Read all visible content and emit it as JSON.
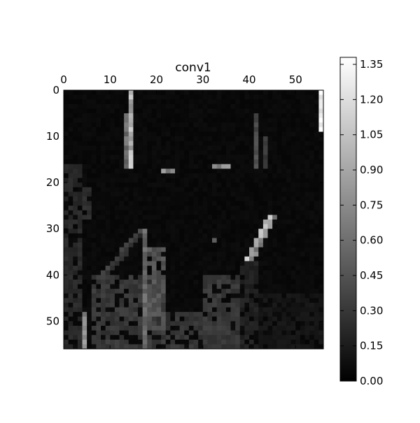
{
  "chart_data": {
    "type": "heatmap",
    "title": "conv1",
    "xlabel": "",
    "ylabel": "",
    "colormap": "gray",
    "grid": false,
    "x_ticks": [
      0,
      10,
      20,
      30,
      40,
      50
    ],
    "y_ticks": [
      0,
      10,
      20,
      30,
      40,
      50
    ],
    "x_tick_labels": [
      "0",
      "10",
      "20",
      "30",
      "40",
      "50"
    ],
    "y_tick_labels": [
      "0",
      "10",
      "20",
      "30",
      "40",
      "50"
    ],
    "xlim": [
      0,
      56
    ],
    "ylim": [
      0,
      56
    ],
    "colorbar": {
      "range": [
        0,
        1.38
      ],
      "ticks": [
        0.0,
        0.15,
        0.3,
        0.45,
        0.6,
        0.75,
        0.9,
        1.05,
        1.2,
        1.35
      ],
      "tick_labels": [
        "0.00",
        "0.15",
        "0.30",
        "0.45",
        "0.60",
        "0.75",
        "0.90",
        "1.05",
        "1.20",
        "1.35"
      ],
      "placement": "right"
    },
    "image": {
      "rows": 56,
      "cols": 56,
      "background": 0.03,
      "features": [
        {
          "kind": "vline",
          "col": 14,
          "row_start": 0,
          "row_end": 17,
          "value": 0.95
        },
        {
          "kind": "vline",
          "col": 13,
          "row_start": 5,
          "row_end": 17,
          "value": 0.6
        },
        {
          "kind": "vline",
          "col": 55,
          "row_start": 0,
          "row_end": 9,
          "value": 1.3
        },
        {
          "kind": "vline",
          "col": 41,
          "row_start": 5,
          "row_end": 17,
          "value": 0.4
        },
        {
          "kind": "vline",
          "col": 43,
          "row_start": 10,
          "row_end": 17,
          "value": 0.3
        },
        {
          "kind": "vline",
          "col": 17,
          "row_start": 30,
          "row_end": 56,
          "value": 0.55
        },
        {
          "kind": "vline",
          "col": 4,
          "row_start": 48,
          "row_end": 56,
          "value": 0.75
        },
        {
          "kind": "hline",
          "row": 17,
          "col_start": 21,
          "col_end": 23,
          "value": 0.75
        },
        {
          "kind": "hline",
          "row": 16,
          "col_start": 32,
          "col_end": 35,
          "value": 0.75
        },
        {
          "kind": "diag",
          "r0": 27,
          "c0": 44,
          "r1": 36,
          "c1": 39,
          "value": 1.05
        },
        {
          "kind": "diag",
          "r0": 30,
          "c0": 16,
          "r1": 40,
          "c1": 7,
          "value": 0.35
        },
        {
          "kind": "rect",
          "r0": 16,
          "c0": 0,
          "r1": 56,
          "c1": 4,
          "value": 0.22
        },
        {
          "kind": "rect",
          "r0": 20,
          "c0": 4,
          "r1": 28,
          "c1": 6,
          "value": 0.25
        },
        {
          "kind": "rect",
          "r0": 40,
          "c0": 6,
          "r1": 56,
          "c1": 22,
          "value": 0.3
        },
        {
          "kind": "rect",
          "r0": 34,
          "c0": 17,
          "r1": 52,
          "c1": 22,
          "value": 0.45
        },
        {
          "kind": "rect",
          "r0": 48,
          "c0": 22,
          "r1": 56,
          "c1": 38,
          "value": 0.28
        },
        {
          "kind": "rect",
          "r0": 40,
          "c0": 30,
          "r1": 56,
          "c1": 38,
          "value": 0.3
        },
        {
          "kind": "rect",
          "r0": 36,
          "c0": 38,
          "r1": 56,
          "c1": 42,
          "value": 0.18
        },
        {
          "kind": "rect",
          "r0": 44,
          "c0": 42,
          "r1": 56,
          "c1": 56,
          "value": 0.12
        },
        {
          "kind": "dot",
          "r": 32,
          "c": 32,
          "value": 0.5
        }
      ]
    }
  }
}
